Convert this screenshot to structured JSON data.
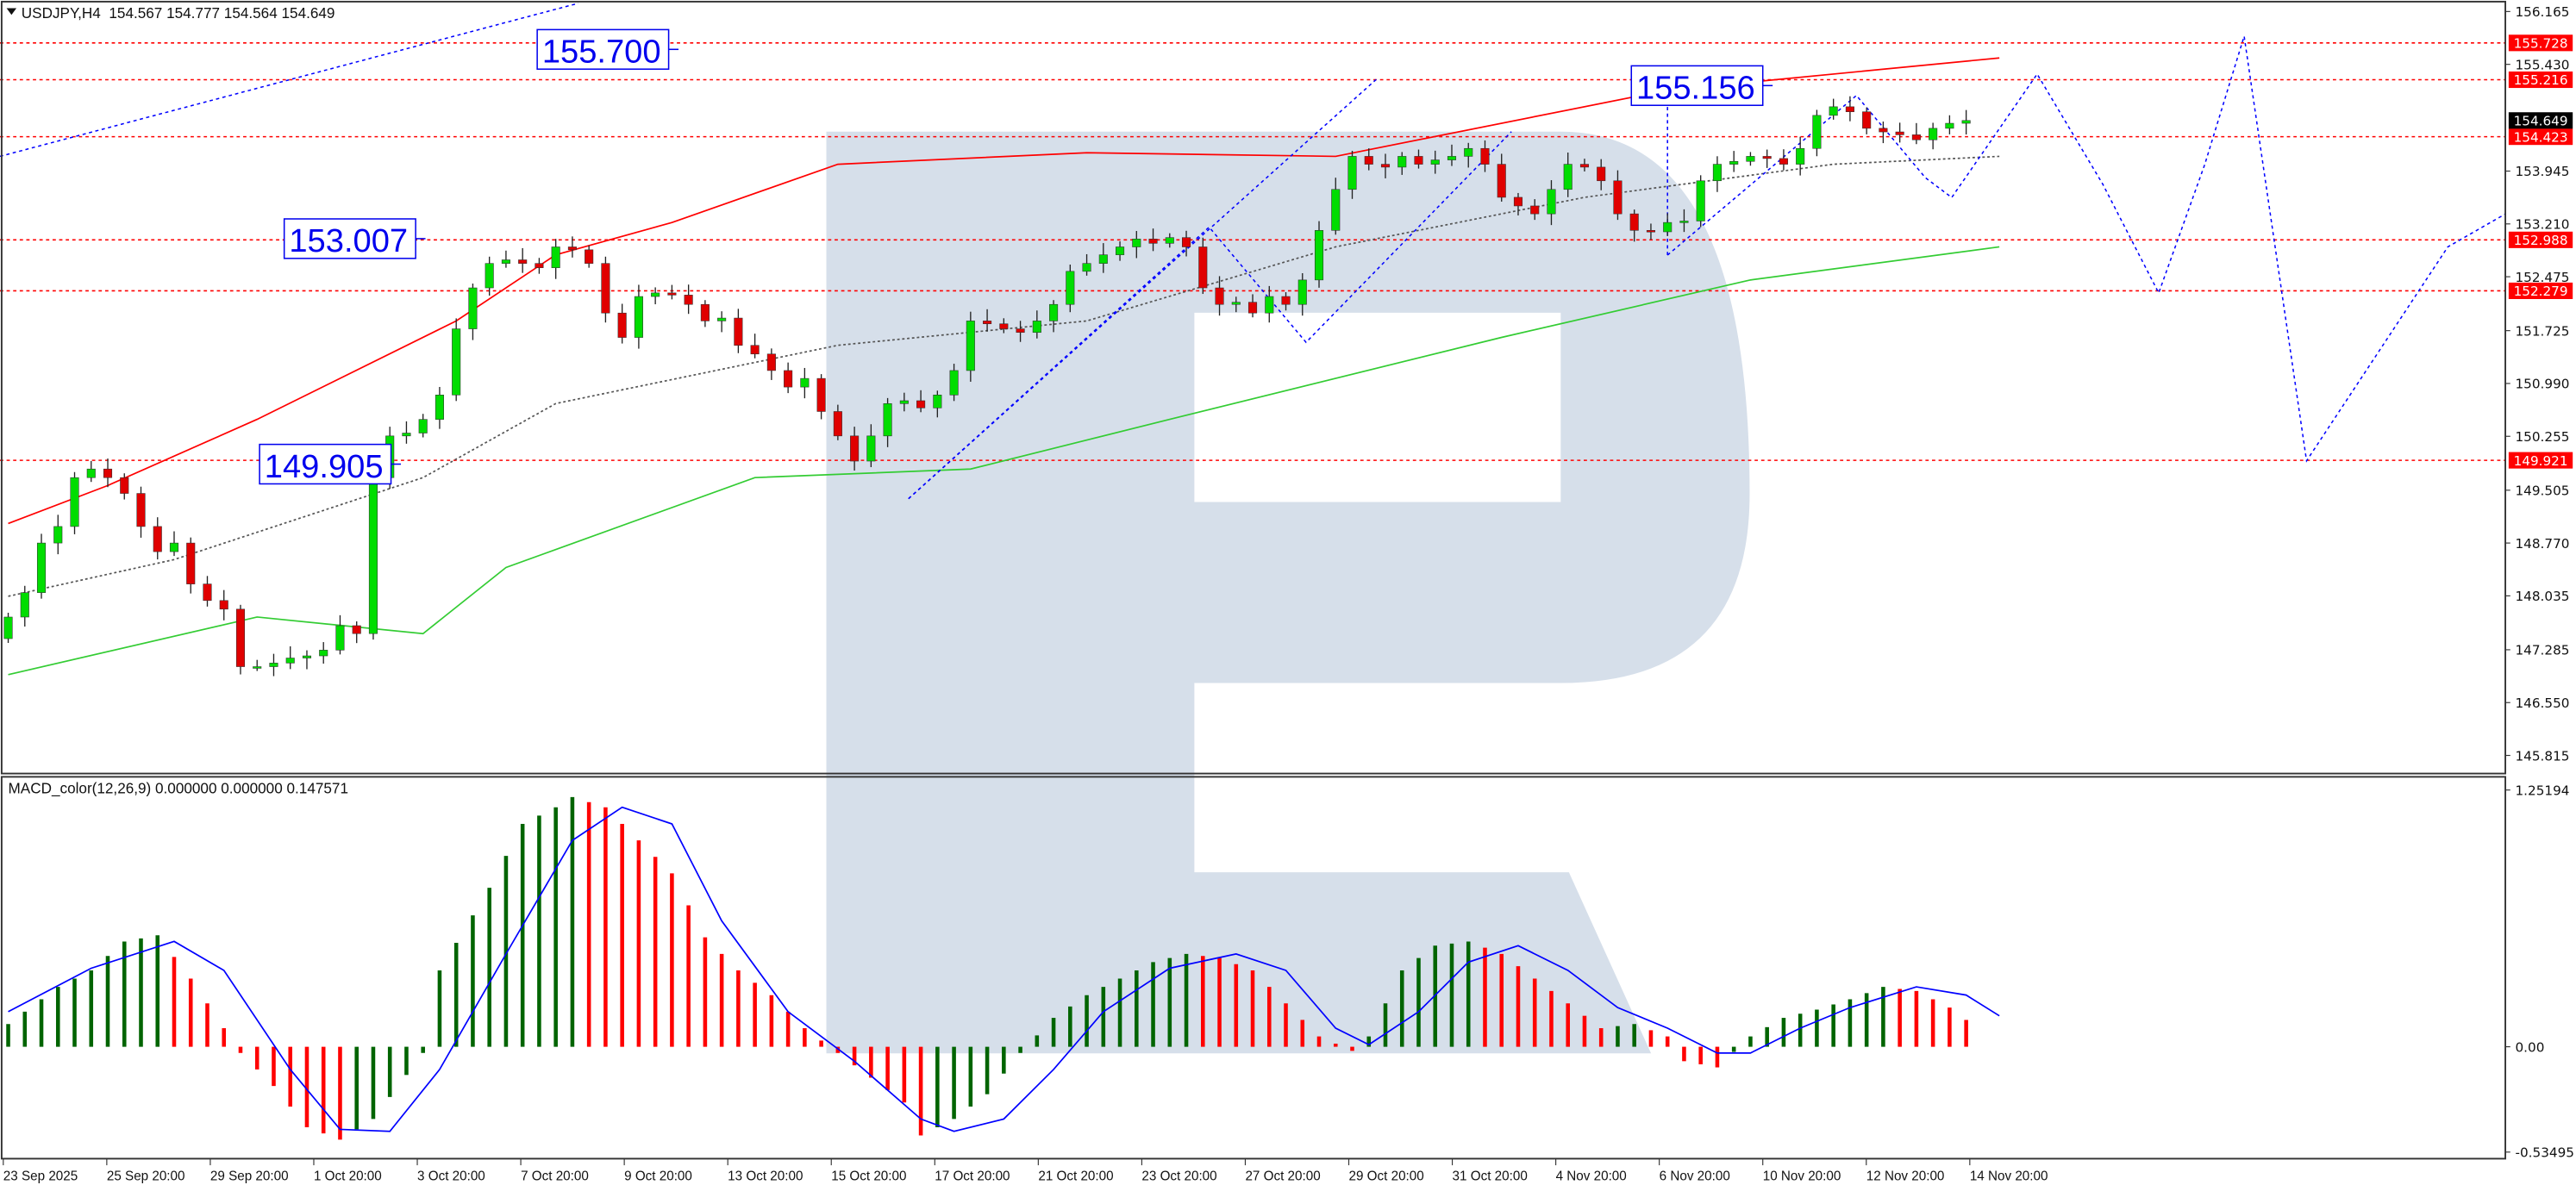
{
  "header": {
    "symbol_label": "USDJPY,H4",
    "ohlc": "154.567 154.777 154.564 154.649",
    "menu_icon": "triangle-down-icon"
  },
  "macd_header": "MACD_color(12,26,9) 0.000000 0.000000 0.147571",
  "colors": {
    "bull": "#00dd00",
    "bear": "#e00000",
    "red_ma": "#ff0000",
    "green_ma": "#33cc33",
    "grey_ma": "#555555",
    "level": "#ff0000",
    "forecast": "#0000ff",
    "watermark": "#d6dfea",
    "macd_green": "#006400",
    "macd_red": "#ff0000",
    "signal": "#0000ff"
  },
  "price_axis": {
    "ticks": [
      "156.165",
      "155.430",
      "153.945",
      "153.210",
      "152.475",
      "151.725",
      "150.990",
      "150.255",
      "149.505",
      "148.770",
      "148.035",
      "147.285",
      "146.550",
      "145.815"
    ],
    "current": "154.649"
  },
  "levels": [
    "155.728",
    "155.216",
    "154.423",
    "152.988",
    "152.279",
    "149.921"
  ],
  "callouts": [
    "155.700",
    "153.007",
    "149.905",
    "155.156"
  ],
  "macd_axis": {
    "ticks": [
      "1.25194",
      "0.00",
      "-0.53495"
    ]
  },
  "time_axis": [
    "23 Sep 2025",
    "25 Sep 20:00",
    "29 Sep 20:00",
    "1 Oct 20:00",
    "3 Oct 20:00",
    "7 Oct 20:00",
    "9 Oct 20:00",
    "13 Oct 20:00",
    "15 Oct 20:00",
    "17 Oct 20:00",
    "21 Oct 20:00",
    "23 Oct 20:00",
    "27 Oct 20:00",
    "29 Oct 20:00",
    "31 Oct 20:00",
    "4 Nov 20:00",
    "6 Nov 20:00",
    "10 Nov 20:00",
    "12 Nov 20:00",
    "14 Nov 20:00"
  ],
  "chart_data": {
    "type": "candlestick",
    "symbol": "USDJPY",
    "timeframe": "H4",
    "ylim": [
      145.815,
      156.165
    ],
    "closes": [
      147.74,
      148.08,
      148.77,
      149.0,
      149.68,
      149.8,
      149.68,
      149.46,
      149.0,
      148.65,
      148.77,
      148.2,
      147.97,
      147.85,
      147.05,
      147.05,
      147.1,
      147.17,
      147.2,
      147.28,
      147.62,
      147.51,
      149.68,
      150.26,
      150.3,
      150.49,
      150.83,
      151.75,
      152.32,
      152.66,
      152.71,
      152.66,
      152.6,
      152.89,
      152.85,
      152.66,
      151.97,
      151.63,
      152.2,
      152.25,
      152.22,
      152.09,
      151.86,
      151.9,
      151.52,
      151.4,
      151.17,
      150.94,
      151.06,
      150.6,
      150.26,
      149.91,
      150.26,
      150.71,
      150.75,
      150.65,
      150.83,
      151.17,
      151.86,
      151.82,
      151.75,
      151.7,
      151.86,
      152.09,
      152.55,
      152.66,
      152.78,
      152.89,
      153.0,
      152.94,
      153.02,
      152.89,
      152.32,
      152.09,
      152.12,
      151.97,
      152.2,
      152.09,
      152.43,
      153.12,
      153.69,
      154.15,
      154.04,
      154.0,
      154.15,
      154.04,
      154.1,
      154.15,
      154.26,
      154.04,
      153.58,
      153.46,
      153.35,
      153.69,
      154.04,
      154.0,
      153.81,
      153.35,
      153.12,
      153.1,
      153.23,
      153.25,
      153.81,
      154.04,
      154.08,
      154.15,
      154.12,
      154.04,
      154.26,
      154.72,
      154.84,
      154.77,
      154.54,
      154.49,
      154.45,
      154.38,
      154.54,
      154.61,
      154.649
    ],
    "moving_averages": [
      {
        "color": "red",
        "points": [
          [
            0,
            149.04
          ],
          [
            6,
            149.57
          ],
          [
            15,
            150.49
          ],
          [
            27,
            151.86
          ],
          [
            33,
            152.78
          ],
          [
            40,
            153.23
          ],
          [
            50,
            154.04
          ],
          [
            65,
            154.2
          ],
          [
            80,
            154.15
          ],
          [
            100,
            155.07
          ],
          [
            120,
            155.52
          ]
        ]
      },
      {
        "color": "grey-dotted",
        "points": [
          [
            0,
            148.03
          ],
          [
            10,
            148.54
          ],
          [
            25,
            149.68
          ],
          [
            33,
            150.71
          ],
          [
            50,
            151.52
          ],
          [
            65,
            151.86
          ],
          [
            80,
            152.89
          ],
          [
            95,
            153.58
          ],
          [
            110,
            154.04
          ],
          [
            120,
            154.15
          ]
        ]
      },
      {
        "color": "green",
        "points": [
          [
            0,
            146.94
          ],
          [
            15,
            147.74
          ],
          [
            25,
            147.51
          ],
          [
            30,
            148.43
          ],
          [
            45,
            149.68
          ],
          [
            58,
            149.8
          ],
          [
            70,
            150.49
          ],
          [
            90,
            151.63
          ],
          [
            105,
            152.43
          ],
          [
            120,
            152.89
          ]
        ]
      }
    ],
    "macd": {
      "ylim": [
        -0.53495,
        1.25194
      ],
      "histogram_points": [
        [
          0,
          0.11
        ],
        [
          3,
          0.29
        ],
        [
          5,
          0.37
        ],
        [
          7,
          0.51
        ],
        [
          9,
          0.54
        ],
        [
          11,
          0.33
        ],
        [
          13,
          0.09
        ],
        [
          14,
          -0.03
        ],
        [
          16,
          -0.19
        ],
        [
          18,
          -0.39
        ],
        [
          20,
          -0.45
        ],
        [
          22,
          -0.35
        ],
        [
          25,
          -0.03
        ],
        [
          26,
          0.37
        ],
        [
          29,
          0.77
        ],
        [
          31,
          1.08
        ],
        [
          33,
          1.16
        ],
        [
          34,
          1.21
        ],
        [
          36,
          1.16
        ],
        [
          38,
          1.0
        ],
        [
          40,
          0.84
        ],
        [
          42,
          0.53
        ],
        [
          44,
          0.37
        ],
        [
          46,
          0.25
        ],
        [
          48,
          0.09
        ],
        [
          50,
          -0.03
        ],
        [
          52,
          -0.15
        ],
        [
          54,
          -0.27
        ],
        [
          55,
          -0.43
        ],
        [
          57,
          -0.35
        ],
        [
          59,
          -0.23
        ],
        [
          61,
          -0.03
        ],
        [
          63,
          0.14
        ],
        [
          65,
          0.25
        ],
        [
          67,
          0.33
        ],
        [
          69,
          0.41
        ],
        [
          71,
          0.45
        ],
        [
          73,
          0.43
        ],
        [
          75,
          0.37
        ],
        [
          77,
          0.21
        ],
        [
          79,
          0.05
        ],
        [
          81,
          -0.02
        ],
        [
          82,
          0.05
        ],
        [
          84,
          0.37
        ],
        [
          86,
          0.49
        ],
        [
          88,
          0.51
        ],
        [
          90,
          0.45
        ],
        [
          92,
          0.33
        ],
        [
          94,
          0.21
        ],
        [
          96,
          0.09
        ],
        [
          98,
          0.11
        ],
        [
          100,
          0.05
        ],
        [
          101,
          -0.07
        ],
        [
          103,
          -0.1
        ],
        [
          105,
          0.05
        ],
        [
          107,
          0.14
        ],
        [
          109,
          0.18
        ],
        [
          111,
          0.23
        ],
        [
          113,
          0.29
        ],
        [
          115,
          0.27
        ],
        [
          117,
          0.19
        ],
        [
          118,
          0.13
        ],
        [
          119,
          0.11
        ]
      ],
      "signal_points": [
        [
          0,
          0.17
        ],
        [
          5,
          0.38
        ],
        [
          10,
          0.51
        ],
        [
          13,
          0.37
        ],
        [
          17,
          -0.11
        ],
        [
          20,
          -0.4
        ],
        [
          23,
          -0.41
        ],
        [
          26,
          -0.11
        ],
        [
          30,
          0.45
        ],
        [
          34,
          1.0
        ],
        [
          37,
          1.16
        ],
        [
          40,
          1.08
        ],
        [
          43,
          0.61
        ],
        [
          47,
          0.17
        ],
        [
          51,
          -0.07
        ],
        [
          55,
          -0.35
        ],
        [
          57,
          -0.41
        ],
        [
          60,
          -0.35
        ],
        [
          63,
          -0.11
        ],
        [
          66,
          0.17
        ],
        [
          70,
          0.38
        ],
        [
          74,
          0.45
        ],
        [
          77,
          0.37
        ],
        [
          80,
          0.09
        ],
        [
          82,
          0.01
        ],
        [
          85,
          0.17
        ],
        [
          88,
          0.41
        ],
        [
          91,
          0.49
        ],
        [
          94,
          0.37
        ],
        [
          97,
          0.19
        ],
        [
          100,
          0.09
        ],
        [
          103,
          -0.03
        ],
        [
          105,
          -0.03
        ],
        [
          108,
          0.09
        ],
        [
          111,
          0.19
        ],
        [
          115,
          0.29
        ],
        [
          118,
          0.25
        ],
        [
          120,
          0.15
        ]
      ]
    }
  }
}
